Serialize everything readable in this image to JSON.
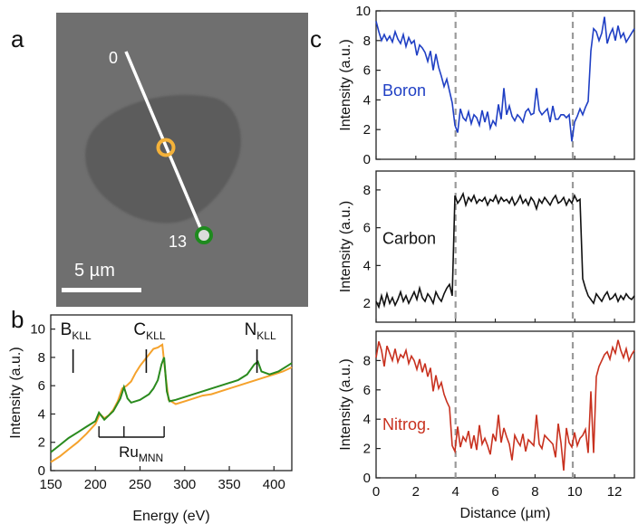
{
  "panels": {
    "a": {
      "label": "a",
      "line_start_label": "0",
      "line_end_label": "13",
      "scale_bar_label": "5 µm"
    },
    "b": {
      "label": "b"
    },
    "c": {
      "label": "c"
    }
  },
  "chart_data": [
    {
      "id": "b",
      "type": "line",
      "xlabel": "Energy (eV)",
      "ylabel": "Intensity (a.u.)",
      "xlim": [
        150,
        420
      ],
      "ylim": [
        0,
        11
      ],
      "xticks": [
        150,
        200,
        250,
        300,
        350,
        400
      ],
      "yticks": [
        0,
        2,
        4,
        6,
        8,
        10
      ],
      "annotations": [
        {
          "base": "B",
          "sub": "KLL",
          "x": 175
        },
        {
          "base": "C",
          "sub": "KLL",
          "x": 257
        },
        {
          "base": "N",
          "sub": "KLL",
          "x": 381
        },
        {
          "base": "Ru",
          "sub": "MNN",
          "bracket": [
            204,
            277
          ],
          "ticks": [
            204,
            232,
            277
          ]
        }
      ],
      "series": [
        {
          "name": "orange",
          "color": "#f5a22c",
          "points": [
            [
              150,
              0.6
            ],
            [
              160,
              1.0
            ],
            [
              170,
              1.5
            ],
            [
              180,
              2.0
            ],
            [
              190,
              2.6
            ],
            [
              200,
              3.3
            ],
            [
              205,
              4.0
            ],
            [
              210,
              3.7
            ],
            [
              215,
              3.9
            ],
            [
              220,
              4.3
            ],
            [
              225,
              4.9
            ],
            [
              230,
              5.8
            ],
            [
              235,
              6.0
            ],
            [
              240,
              6.3
            ],
            [
              245,
              6.9
            ],
            [
              250,
              7.4
            ],
            [
              255,
              7.8
            ],
            [
              260,
              8.2
            ],
            [
              265,
              8.6
            ],
            [
              270,
              8.7
            ],
            [
              275,
              8.9
            ],
            [
              279,
              6.5
            ],
            [
              282,
              5.0
            ],
            [
              290,
              4.7
            ],
            [
              300,
              4.9
            ],
            [
              310,
              5.1
            ],
            [
              320,
              5.3
            ],
            [
              330,
              5.4
            ],
            [
              340,
              5.6
            ],
            [
              350,
              5.8
            ],
            [
              360,
              6.0
            ],
            [
              370,
              6.2
            ],
            [
              380,
              6.4
            ],
            [
              390,
              6.6
            ],
            [
              400,
              6.8
            ],
            [
              410,
              7.0
            ],
            [
              420,
              7.3
            ]
          ]
        },
        {
          "name": "green",
          "color": "#2a8a1e",
          "points": [
            [
              150,
              1.3
            ],
            [
              160,
              1.8
            ],
            [
              170,
              2.3
            ],
            [
              180,
              2.7
            ],
            [
              190,
              3.1
            ],
            [
              200,
              3.5
            ],
            [
              204,
              4.1
            ],
            [
              210,
              3.6
            ],
            [
              220,
              4.2
            ],
            [
              228,
              5.1
            ],
            [
              232,
              5.9
            ],
            [
              236,
              5.1
            ],
            [
              240,
              4.8
            ],
            [
              250,
              5.0
            ],
            [
              260,
              5.4
            ],
            [
              265,
              5.8
            ],
            [
              270,
              6.4
            ],
            [
              274,
              7.5
            ],
            [
              277,
              8.0
            ],
            [
              280,
              5.6
            ],
            [
              283,
              4.9
            ],
            [
              290,
              5.0
            ],
            [
              300,
              5.2
            ],
            [
              310,
              5.4
            ],
            [
              320,
              5.6
            ],
            [
              330,
              5.8
            ],
            [
              340,
              6.0
            ],
            [
              350,
              6.2
            ],
            [
              360,
              6.4
            ],
            [
              370,
              6.8
            ],
            [
              378,
              7.5
            ],
            [
              382,
              7.7
            ],
            [
              386,
              7.0
            ],
            [
              395,
              6.8
            ],
            [
              405,
              7.0
            ],
            [
              415,
              7.4
            ],
            [
              420,
              7.6
            ]
          ]
        }
      ]
    },
    {
      "id": "c",
      "type": "line",
      "xlabel": "Distance (µm)",
      "xlim": [
        0,
        13
      ],
      "xticks": [
        0,
        2,
        4,
        6,
        8,
        10,
        12
      ],
      "dashed_x": [
        4.0,
        9.9
      ],
      "subplots": [
        {
          "name": "Boron",
          "color": "#1f3fc4",
          "ylabel": "Intensity (a.u.)",
          "ylim": [
            0,
            10
          ],
          "yticks": [
            0,
            2,
            4,
            6,
            8,
            10
          ],
          "values": [
            9.3,
            8.6,
            8.0,
            8.4,
            8.0,
            8.3,
            7.9,
            8.6,
            8.1,
            7.8,
            8.4,
            7.6,
            8.2,
            7.8,
            8.0,
            7.0,
            7.7,
            7.5,
            7.2,
            6.6,
            7.3,
            6.0,
            7.1,
            6.2,
            5.6,
            4.9,
            5.4,
            4.6,
            3.8,
            2.3,
            1.8,
            3.4,
            2.8,
            2.6,
            3.2,
            2.4,
            3.0,
            2.8,
            2.3,
            3.3,
            2.5,
            3.2,
            2.1,
            2.6,
            2.3,
            3.7,
            2.7,
            4.8,
            3.0,
            3.6,
            2.9,
            2.6,
            3.0,
            2.8,
            2.5,
            3.2,
            3.4,
            3.0,
            3.1,
            4.8,
            3.3,
            3.0,
            3.2,
            3.4,
            2.5,
            3.6,
            2.7,
            2.7,
            3.0,
            3.0,
            2.8,
            3.0,
            1.2,
            2.5,
            2.9,
            3.4,
            3.0,
            3.5,
            3.9,
            7.3,
            8.8,
            8.6,
            8.0,
            8.5,
            9.6,
            7.8,
            8.4,
            8.8,
            8.0,
            9.0,
            8.2,
            8.5,
            7.9,
            8.2,
            8.5,
            8.8
          ]
        },
        {
          "name": "Carbon",
          "color": "#111111",
          "ylabel": "Intensity (a.u.)",
          "ylim": [
            1,
            9
          ],
          "yticks": [
            2,
            4,
            6,
            8
          ],
          "values": [
            2.1,
            1.8,
            2.4,
            1.9,
            2.5,
            2.0,
            2.3,
            1.9,
            2.2,
            2.6,
            2.1,
            2.4,
            2.0,
            2.3,
            2.6,
            2.2,
            2.8,
            2.3,
            2.1,
            2.5,
            2.3,
            2.0,
            2.6,
            2.3,
            2.1,
            2.5,
            2.8,
            3.0,
            2.4,
            7.7,
            7.3,
            7.5,
            7.8,
            7.2,
            7.6,
            7.4,
            7.7,
            7.3,
            7.5,
            7.4,
            7.6,
            7.2,
            7.5,
            7.4,
            7.7,
            7.3,
            7.6,
            7.4,
            7.5,
            7.3,
            7.6,
            7.2,
            7.4,
            7.7,
            7.3,
            7.5,
            7.2,
            7.6,
            7.4,
            7.0,
            7.5,
            7.3,
            7.6,
            7.4,
            7.2,
            7.5,
            7.7,
            7.3,
            7.4,
            7.6,
            7.2,
            7.5,
            7.3,
            7.7,
            7.4,
            7.5,
            3.3,
            2.8,
            2.4,
            2.2,
            2.0,
            2.5,
            2.3,
            2.1,
            2.4,
            2.6,
            2.2,
            2.3,
            2.5,
            2.1,
            2.4,
            2.2,
            2.5,
            2.3,
            2.2,
            2.4
          ]
        },
        {
          "name": "Nitrog.",
          "color": "#c8311f",
          "ylabel": "Intensity (a.u.)",
          "ylim": [
            0,
            10
          ],
          "yticks": [
            0,
            2,
            4,
            6,
            8
          ],
          "values": [
            8.2,
            9.3,
            8.7,
            7.6,
            9.0,
            8.5,
            8.0,
            8.8,
            7.9,
            8.4,
            8.2,
            8.7,
            7.8,
            8.3,
            8.0,
            7.4,
            8.1,
            7.2,
            7.8,
            6.9,
            7.5,
            5.9,
            7.0,
            6.1,
            6.5,
            5.7,
            5.2,
            4.8,
            2.2,
            1.8,
            3.5,
            2.1,
            2.8,
            2.5,
            3.2,
            2.0,
            2.9,
            1.9,
            3.6,
            2.3,
            2.7,
            2.2,
            1.6,
            3.0,
            2.5,
            4.3,
            2.4,
            3.4,
            2.8,
            2.3,
            1.2,
            2.9,
            2.5,
            2.2,
            3.0,
            1.8,
            2.6,
            2.4,
            2.2,
            4.3,
            2.3,
            2.0,
            2.9,
            2.7,
            2.5,
            2.3,
            1.4,
            3.7,
            2.4,
            0.5,
            3.4,
            2.4,
            2.1,
            3.1,
            2.2,
            2.7,
            2.9,
            3.3,
            1.7,
            5.9,
            1.7,
            6.9,
            7.6,
            8.0,
            8.4,
            8.6,
            8.1,
            8.9,
            8.5,
            9.4,
            8.7,
            8.2,
            8.8,
            8.0,
            8.4,
            8.7
          ]
        }
      ]
    }
  ]
}
